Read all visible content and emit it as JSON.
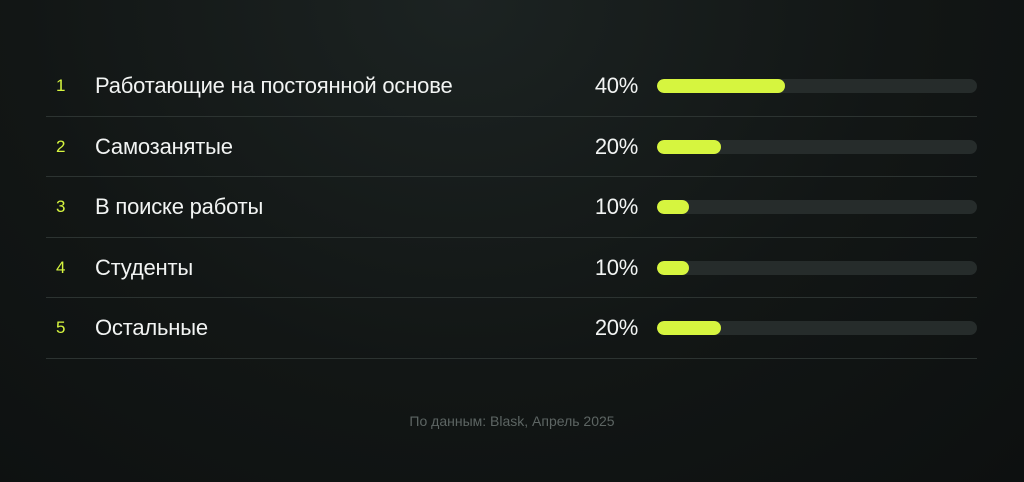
{
  "chart_data": {
    "type": "bar",
    "orientation": "horizontal",
    "xlim": [
      0,
      100
    ],
    "grid": false,
    "legend": "none",
    "rows": [
      {
        "rank": "1",
        "label": "Работающие на постоянной основе",
        "value": 40,
        "value_label": "40%"
      },
      {
        "rank": "2",
        "label": "Самозанятые",
        "value": 20,
        "value_label": "20%"
      },
      {
        "rank": "3",
        "label": "В поиске работы",
        "value": 10,
        "value_label": "10%"
      },
      {
        "rank": "4",
        "label": "Студенты",
        "value": 10,
        "value_label": "10%"
      },
      {
        "rank": "5",
        "label": "Остальные",
        "value": 20,
        "value_label": "20%"
      }
    ],
    "colors": {
      "bar": "#d6f53f",
      "track": "#262c2b",
      "rank": "#d6f53f",
      "text": "#f2f4f3"
    }
  },
  "footer": {
    "source": "По данным: Blask, Апрель 2025"
  }
}
